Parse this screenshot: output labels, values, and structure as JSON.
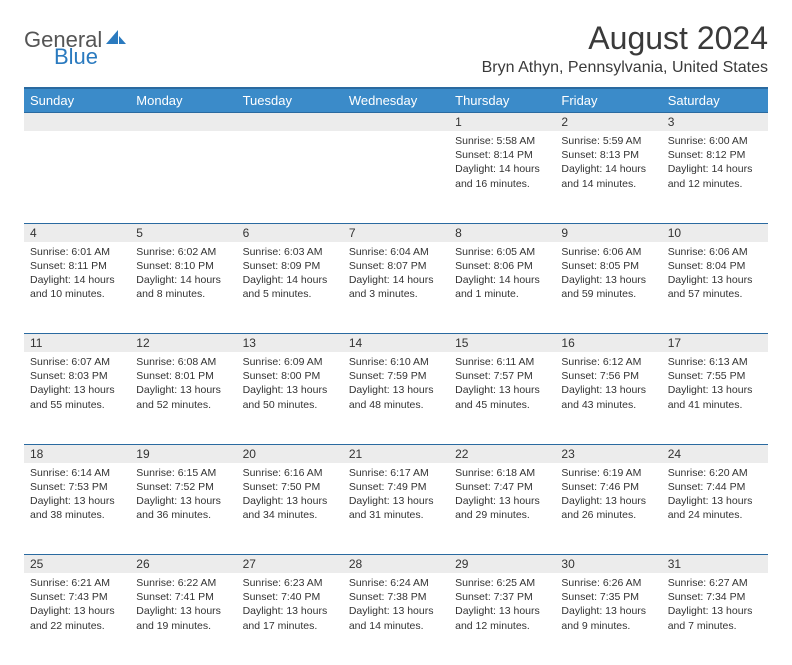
{
  "logo": {
    "word1": "General",
    "word2": "Blue"
  },
  "title": "August 2024",
  "location": "Bryn Athyn, Pennsylvania, United States",
  "colors": {
    "header_bg": "#3b8bc9",
    "header_border": "#2a6aa0",
    "daynum_bg": "#ececec",
    "text": "#333333",
    "logo_gray": "#555555",
    "logo_blue": "#2a7abf"
  },
  "dayHeaders": [
    "Sunday",
    "Monday",
    "Tuesday",
    "Wednesday",
    "Thursday",
    "Friday",
    "Saturday"
  ],
  "weeks": [
    [
      null,
      null,
      null,
      null,
      {
        "n": "1",
        "sunrise": "5:58 AM",
        "sunset": "8:14 PM",
        "daylight": "14 hours and 16 minutes."
      },
      {
        "n": "2",
        "sunrise": "5:59 AM",
        "sunset": "8:13 PM",
        "daylight": "14 hours and 14 minutes."
      },
      {
        "n": "3",
        "sunrise": "6:00 AM",
        "sunset": "8:12 PM",
        "daylight": "14 hours and 12 minutes."
      }
    ],
    [
      {
        "n": "4",
        "sunrise": "6:01 AM",
        "sunset": "8:11 PM",
        "daylight": "14 hours and 10 minutes."
      },
      {
        "n": "5",
        "sunrise": "6:02 AM",
        "sunset": "8:10 PM",
        "daylight": "14 hours and 8 minutes."
      },
      {
        "n": "6",
        "sunrise": "6:03 AM",
        "sunset": "8:09 PM",
        "daylight": "14 hours and 5 minutes."
      },
      {
        "n": "7",
        "sunrise": "6:04 AM",
        "sunset": "8:07 PM",
        "daylight": "14 hours and 3 minutes."
      },
      {
        "n": "8",
        "sunrise": "6:05 AM",
        "sunset": "8:06 PM",
        "daylight": "14 hours and 1 minute."
      },
      {
        "n": "9",
        "sunrise": "6:06 AM",
        "sunset": "8:05 PM",
        "daylight": "13 hours and 59 minutes."
      },
      {
        "n": "10",
        "sunrise": "6:06 AM",
        "sunset": "8:04 PM",
        "daylight": "13 hours and 57 minutes."
      }
    ],
    [
      {
        "n": "11",
        "sunrise": "6:07 AM",
        "sunset": "8:03 PM",
        "daylight": "13 hours and 55 minutes."
      },
      {
        "n": "12",
        "sunrise": "6:08 AM",
        "sunset": "8:01 PM",
        "daylight": "13 hours and 52 minutes."
      },
      {
        "n": "13",
        "sunrise": "6:09 AM",
        "sunset": "8:00 PM",
        "daylight": "13 hours and 50 minutes."
      },
      {
        "n": "14",
        "sunrise": "6:10 AM",
        "sunset": "7:59 PM",
        "daylight": "13 hours and 48 minutes."
      },
      {
        "n": "15",
        "sunrise": "6:11 AM",
        "sunset": "7:57 PM",
        "daylight": "13 hours and 45 minutes."
      },
      {
        "n": "16",
        "sunrise": "6:12 AM",
        "sunset": "7:56 PM",
        "daylight": "13 hours and 43 minutes."
      },
      {
        "n": "17",
        "sunrise": "6:13 AM",
        "sunset": "7:55 PM",
        "daylight": "13 hours and 41 minutes."
      }
    ],
    [
      {
        "n": "18",
        "sunrise": "6:14 AM",
        "sunset": "7:53 PM",
        "daylight": "13 hours and 38 minutes."
      },
      {
        "n": "19",
        "sunrise": "6:15 AM",
        "sunset": "7:52 PM",
        "daylight": "13 hours and 36 minutes."
      },
      {
        "n": "20",
        "sunrise": "6:16 AM",
        "sunset": "7:50 PM",
        "daylight": "13 hours and 34 minutes."
      },
      {
        "n": "21",
        "sunrise": "6:17 AM",
        "sunset": "7:49 PM",
        "daylight": "13 hours and 31 minutes."
      },
      {
        "n": "22",
        "sunrise": "6:18 AM",
        "sunset": "7:47 PM",
        "daylight": "13 hours and 29 minutes."
      },
      {
        "n": "23",
        "sunrise": "6:19 AM",
        "sunset": "7:46 PM",
        "daylight": "13 hours and 26 minutes."
      },
      {
        "n": "24",
        "sunrise": "6:20 AM",
        "sunset": "7:44 PM",
        "daylight": "13 hours and 24 minutes."
      }
    ],
    [
      {
        "n": "25",
        "sunrise": "6:21 AM",
        "sunset": "7:43 PM",
        "daylight": "13 hours and 22 minutes."
      },
      {
        "n": "26",
        "sunrise": "6:22 AM",
        "sunset": "7:41 PM",
        "daylight": "13 hours and 19 minutes."
      },
      {
        "n": "27",
        "sunrise": "6:23 AM",
        "sunset": "7:40 PM",
        "daylight": "13 hours and 17 minutes."
      },
      {
        "n": "28",
        "sunrise": "6:24 AM",
        "sunset": "7:38 PM",
        "daylight": "13 hours and 14 minutes."
      },
      {
        "n": "29",
        "sunrise": "6:25 AM",
        "sunset": "7:37 PM",
        "daylight": "13 hours and 12 minutes."
      },
      {
        "n": "30",
        "sunrise": "6:26 AM",
        "sunset": "7:35 PM",
        "daylight": "13 hours and 9 minutes."
      },
      {
        "n": "31",
        "sunrise": "6:27 AM",
        "sunset": "7:34 PM",
        "daylight": "13 hours and 7 minutes."
      }
    ]
  ],
  "labels": {
    "sunrise": "Sunrise:",
    "sunset": "Sunset:",
    "daylight": "Daylight:"
  }
}
